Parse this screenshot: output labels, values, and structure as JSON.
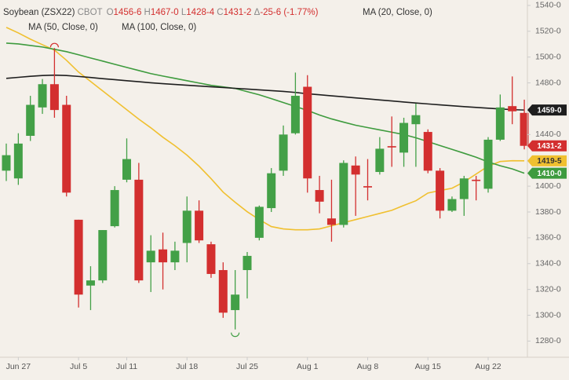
{
  "header": {
    "symbol": "Soybean (ZSX22)",
    "exchange": "CBOT",
    "quote": [
      {
        "key": "O",
        "value": "1456-6"
      },
      {
        "key": "H",
        "value": "1467-0"
      },
      {
        "key": "L",
        "value": "1428-4"
      },
      {
        "key": "C",
        "value": "1431-2"
      },
      {
        "key": "Δ",
        "value": "-25-6 (-1.77%)"
      }
    ]
  },
  "chart_data": {
    "type": "candlestick",
    "x": [
      null,
      "Jun 27",
      null,
      null,
      null,
      null,
      "Jul 5",
      null,
      null,
      null,
      "Jul 11",
      null,
      null,
      null,
      null,
      "Jul 18",
      null,
      null,
      null,
      null,
      "Jul 25",
      null,
      null,
      null,
      null,
      "Aug 1",
      null,
      null,
      null,
      null,
      "Aug 8",
      null,
      null,
      null,
      null,
      "Aug 15",
      null,
      null,
      null,
      null,
      "Aug 22",
      null,
      null,
      null
    ],
    "open": [
      1412,
      1406,
      1439,
      1461,
      1479,
      1463,
      1374,
      1323,
      1327,
      1369,
      1405,
      1405,
      1341,
      1351,
      1341,
      1356,
      1381,
      1355,
      1335,
      1304,
      1335,
      1360,
      1383,
      1412,
      1441,
      1477,
      1397,
      1375,
      1370,
      1416,
      1400,
      1411,
      1431,
      1426,
      1448,
      1442,
      1412,
      1381,
      1390,
      1405,
      1398,
      1436,
      1462,
      1456.75
    ],
    "high": [
      1433,
      1441,
      1470,
      1483,
      1507,
      1470,
      1374,
      1338,
      1366,
      1400,
      1437,
      1418,
      1362,
      1364,
      1357,
      1392,
      1389,
      1357,
      1341,
      1335,
      1349,
      1385,
      1414,
      1447,
      1488,
      1486,
      1408,
      1405,
      1420,
      1423,
      1421,
      1438,
      1454,
      1453,
      1464,
      1444,
      1414,
      1392,
      1408,
      1408,
      1438,
      1471,
      1485,
      1467
    ],
    "low": [
      1404,
      1401,
      1435,
      1456,
      1453,
      1392,
      1306,
      1304,
      1325,
      1368,
      1403,
      1325,
      1318,
      1320,
      1335,
      1341,
      1356,
      1329,
      1298,
      1289,
      1313,
      1358,
      1380,
      1408,
      1440,
      1395,
      1379,
      1357,
      1368,
      1377,
      1389,
      1409,
      1415,
      1415,
      1415,
      1410,
      1375,
      1380,
      1377,
      1389,
      1395,
      1435,
      1448,
      1428.5
    ],
    "close": [
      1424,
      1433,
      1463,
      1479,
      1459,
      1395,
      1316,
      1327,
      1366,
      1397,
      1421,
      1327,
      1350,
      1341,
      1350,
      1381,
      1358,
      1332,
      1302,
      1316,
      1346,
      1384,
      1410,
      1440,
      1470,
      1406,
      1388,
      1370,
      1418,
      1409,
      1399,
      1429,
      1430,
      1449,
      1455,
      1412,
      1381,
      1390,
      1406,
      1404,
      1436,
      1461,
      1458,
      1431.25
    ],
    "up_color": "#43a047",
    "down_color": "#d32f2f",
    "close_label": "1431-2",
    "series": [
      {
        "name": "MA (20, Close, 0)",
        "color": "#f0c030",
        "last_label": "1419-5",
        "values": [
          1523.0,
          1518.7,
          1513.9,
          1509.6,
          1505.4,
          1497.5,
          1488.4,
          1481.1,
          1473.8,
          1466.5,
          1459.2,
          1451.9,
          1445.2,
          1437.9,
          1431.3,
          1424.0,
          1415.5,
          1405.8,
          1395.4,
          1387.5,
          1380.2,
          1374.1,
          1368.7,
          1366.9,
          1366.2,
          1366.2,
          1366.9,
          1369.3,
          1371.7,
          1374.1,
          1376.5,
          1378.9,
          1381.3,
          1385.1,
          1388.7,
          1394.7,
          1396.6,
          1398.4,
          1403.3,
          1409.4,
          1415.5,
          1419.1,
          1419.7,
          1419.625
        ]
      },
      {
        "name": "MA (50, Close, 0)",
        "color": "#3e9b3e",
        "last_label": "1410-0",
        "values": [
          1510.8,
          1510.2,
          1509.0,
          1507.8,
          1506.0,
          1504.2,
          1501.8,
          1499.3,
          1496.9,
          1494.4,
          1492.0,
          1489.6,
          1487.2,
          1485.3,
          1483.5,
          1481.7,
          1479.9,
          1478.1,
          1476.9,
          1475.7,
          1473.2,
          1470.8,
          1467.8,
          1464.8,
          1461.7,
          1458.7,
          1455.1,
          1452.1,
          1449.6,
          1447.2,
          1445.4,
          1443.6,
          1441.8,
          1440.0,
          1437.5,
          1434.5,
          1431.5,
          1428.5,
          1425.5,
          1422.4,
          1418.8,
          1415.8,
          1413.4,
          1410.0
        ]
      },
      {
        "name": "MA (100, Close, 0)",
        "color": "#1e1e1e",
        "last_label": "1459-0",
        "values": [
          1483.5,
          1484.3,
          1485.1,
          1485.7,
          1486.0,
          1485.7,
          1485.0,
          1484.2,
          1483.3,
          1482.5,
          1481.7,
          1480.9,
          1480.1,
          1479.4,
          1478.8,
          1478.2,
          1477.6,
          1477.0,
          1476.4,
          1475.8,
          1475.2,
          1474.6,
          1474.0,
          1473.4,
          1472.6,
          1471.6,
          1470.8,
          1470.0,
          1469.2,
          1468.4,
          1467.6,
          1466.8,
          1466.0,
          1465.2,
          1464.4,
          1463.7,
          1463.0,
          1462.3,
          1461.6,
          1461.0,
          1460.4,
          1459.8,
          1459.3,
          1459.0
        ]
      }
    ],
    "ylim": [
      1276,
      1543
    ],
    "yticks": [
      {
        "value": 1280,
        "label": "1280-0"
      },
      {
        "value": 1300,
        "label": "1300-0"
      },
      {
        "value": 1320,
        "label": "1320-0"
      },
      {
        "value": 1340,
        "label": "1340-0"
      },
      {
        "value": 1360,
        "label": "1360-0"
      },
      {
        "value": 1380,
        "label": "1380-0"
      },
      {
        "value": 1400,
        "label": "1400-0"
      },
      {
        "value": 1420,
        "label": "1420-0"
      },
      {
        "value": 1440,
        "label": "1440-0"
      },
      {
        "value": 1460,
        "label": "1460-0"
      },
      {
        "value": 1480,
        "label": "1480-0"
      },
      {
        "value": 1500,
        "label": "1500-0"
      },
      {
        "value": 1520,
        "label": "1520-0"
      },
      {
        "value": 1540,
        "label": "1540-0"
      }
    ]
  }
}
